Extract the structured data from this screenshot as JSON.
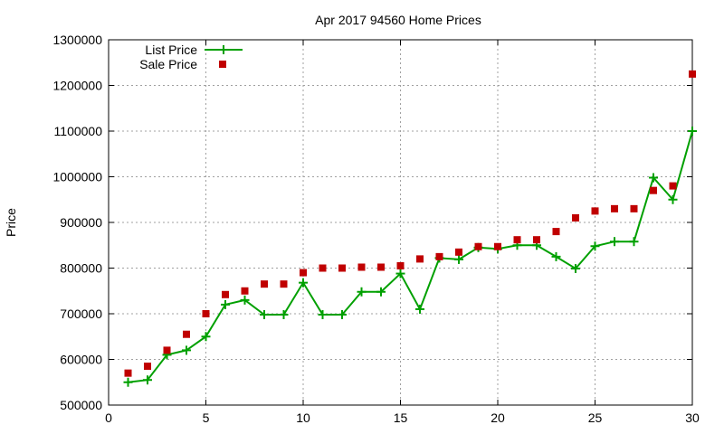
{
  "chart_data": {
    "type": "line",
    "title": "Apr 2017 94560 Home Prices",
    "xlabel": "",
    "ylabel": "Price",
    "xlim": [
      0,
      30
    ],
    "ylim": [
      500000,
      1300000
    ],
    "xticks": [
      0,
      5,
      10,
      15,
      20,
      25,
      30
    ],
    "yticks": [
      500000,
      600000,
      700000,
      800000,
      900000,
      1000000,
      1100000,
      1200000,
      1300000
    ],
    "grid": true,
    "legend_position": "top-left",
    "x": [
      1,
      2,
      3,
      4,
      5,
      6,
      7,
      8,
      9,
      10,
      11,
      12,
      13,
      14,
      15,
      16,
      17,
      18,
      19,
      20,
      21,
      22,
      23,
      24,
      25,
      26,
      27,
      28,
      29,
      30
    ],
    "series": [
      {
        "name": "List Price",
        "kind": "line-points",
        "color": "#00a000",
        "values": [
          550000,
          555000,
          610000,
          620000,
          650000,
          720000,
          730000,
          698000,
          698000,
          768000,
          698000,
          698000,
          748000,
          748000,
          788000,
          710000,
          822000,
          819000,
          845000,
          842000,
          850000,
          850000,
          825000,
          799000,
          848000,
          858000,
          858000,
          998000,
          950000,
          1100000
        ]
      },
      {
        "name": "Sale Price",
        "kind": "points",
        "color": "#c00000",
        "values": [
          570000,
          585000,
          620000,
          655000,
          700000,
          742000,
          750000,
          765000,
          765000,
          790000,
          800000,
          800000,
          802000,
          802000,
          805000,
          820000,
          825000,
          835000,
          847000,
          847000,
          862000,
          862000,
          880000,
          910000,
          925000,
          930000,
          930000,
          970000,
          980000,
          1225000
        ]
      }
    ]
  }
}
